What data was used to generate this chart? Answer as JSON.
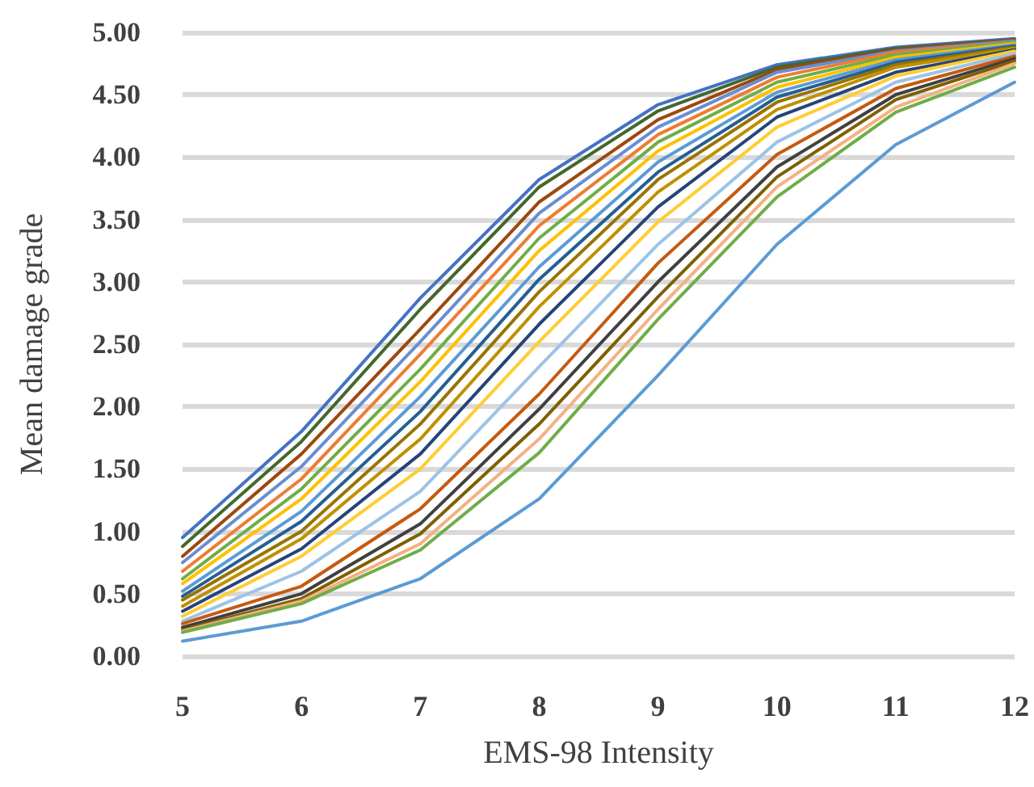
{
  "chart_data": {
    "type": "line",
    "xlabel": "EMS-98 Intensity",
    "ylabel": "Mean damage grade",
    "grid": "y",
    "categories": [
      "5",
      "6",
      "7",
      "8",
      "9",
      "10",
      "11",
      "12"
    ],
    "ylim": [
      0,
      5
    ],
    "yticks": [
      {
        "value": 0,
        "label": "0.00"
      },
      {
        "value": 0.5,
        "label": "0.50"
      },
      {
        "value": 1,
        "label": "1.00"
      },
      {
        "value": 1.5,
        "label": "1.50"
      },
      {
        "value": 2,
        "label": "2.00"
      },
      {
        "value": 2.5,
        "label": "2.50"
      },
      {
        "value": 3,
        "label": "3.00"
      },
      {
        "value": 3.5,
        "label": "3.50"
      },
      {
        "value": 4,
        "label": "4.00"
      },
      {
        "value": 4.5,
        "label": "4.50"
      },
      {
        "value": 5,
        "label": "5.00"
      }
    ],
    "series": [
      {
        "color": "#4472c4",
        "values": [
          0.95,
          1.8,
          2.87,
          3.82,
          4.42,
          4.74,
          4.88,
          4.95
        ]
      },
      {
        "color": "#43682b",
        "values": [
          0.88,
          1.72,
          2.78,
          3.76,
          4.37,
          4.72,
          4.87,
          4.94
        ]
      },
      {
        "color": "#9e480e",
        "values": [
          0.8,
          1.62,
          2.62,
          3.64,
          4.3,
          4.7,
          4.86,
          4.94
        ]
      },
      {
        "color": "#698ed0",
        "values": [
          0.75,
          1.52,
          2.52,
          3.55,
          4.24,
          4.68,
          4.85,
          4.93
        ]
      },
      {
        "color": "#ed7d31",
        "values": [
          0.68,
          1.42,
          2.42,
          3.45,
          4.18,
          4.64,
          4.84,
          4.92
        ]
      },
      {
        "color": "#70ad47",
        "values": [
          0.62,
          1.34,
          2.3,
          3.35,
          4.12,
          4.6,
          4.82,
          4.92
        ]
      },
      {
        "color": "#ffc000",
        "values": [
          0.58,
          1.26,
          2.2,
          3.25,
          4.05,
          4.56,
          4.8,
          4.91
        ]
      },
      {
        "color": "#5b9bd5",
        "values": [
          0.52,
          1.16,
          2.08,
          3.12,
          3.96,
          4.52,
          4.78,
          4.9
        ]
      },
      {
        "color": "#255e91",
        "values": [
          0.48,
          1.08,
          1.96,
          3.02,
          3.88,
          4.48,
          4.76,
          4.89
        ]
      },
      {
        "color": "#997300",
        "values": [
          0.45,
          1.0,
          1.86,
          2.92,
          3.82,
          4.44,
          4.74,
          4.88
        ]
      },
      {
        "color": "#bf9000",
        "values": [
          0.4,
          0.94,
          1.74,
          2.8,
          3.72,
          4.38,
          4.72,
          4.87
        ]
      },
      {
        "color": "#264478",
        "values": [
          0.36,
          0.86,
          1.62,
          2.66,
          3.6,
          4.32,
          4.68,
          4.86
        ]
      },
      {
        "color": "#ffcd33",
        "values": [
          0.32,
          0.8,
          1.5,
          2.52,
          3.48,
          4.24,
          4.65,
          4.85
        ]
      },
      {
        "color": "#9dc3e6",
        "values": [
          0.28,
          0.68,
          1.32,
          2.32,
          3.3,
          4.12,
          4.6,
          4.83
        ]
      },
      {
        "color": "#c55a11",
        "values": [
          0.26,
          0.56,
          1.18,
          2.1,
          3.15,
          4.02,
          4.55,
          4.81
        ]
      },
      {
        "color": "#404040",
        "values": [
          0.23,
          0.5,
          1.06,
          1.98,
          3.0,
          3.92,
          4.5,
          4.79
        ]
      },
      {
        "color": "#7f6000",
        "values": [
          0.21,
          0.46,
          0.98,
          1.86,
          2.88,
          3.84,
          4.46,
          4.77
        ]
      },
      {
        "color": "#f4b183",
        "values": [
          0.2,
          0.44,
          0.9,
          1.74,
          2.78,
          3.76,
          4.4,
          4.75
        ]
      },
      {
        "color": "#70ad47",
        "values": [
          0.19,
          0.42,
          0.85,
          1.63,
          2.7,
          3.68,
          4.36,
          4.72
        ]
      },
      {
        "color": "#5b9bd5",
        "values": [
          0.12,
          0.28,
          0.62,
          1.26,
          2.25,
          3.3,
          4.1,
          4.6
        ]
      }
    ]
  }
}
